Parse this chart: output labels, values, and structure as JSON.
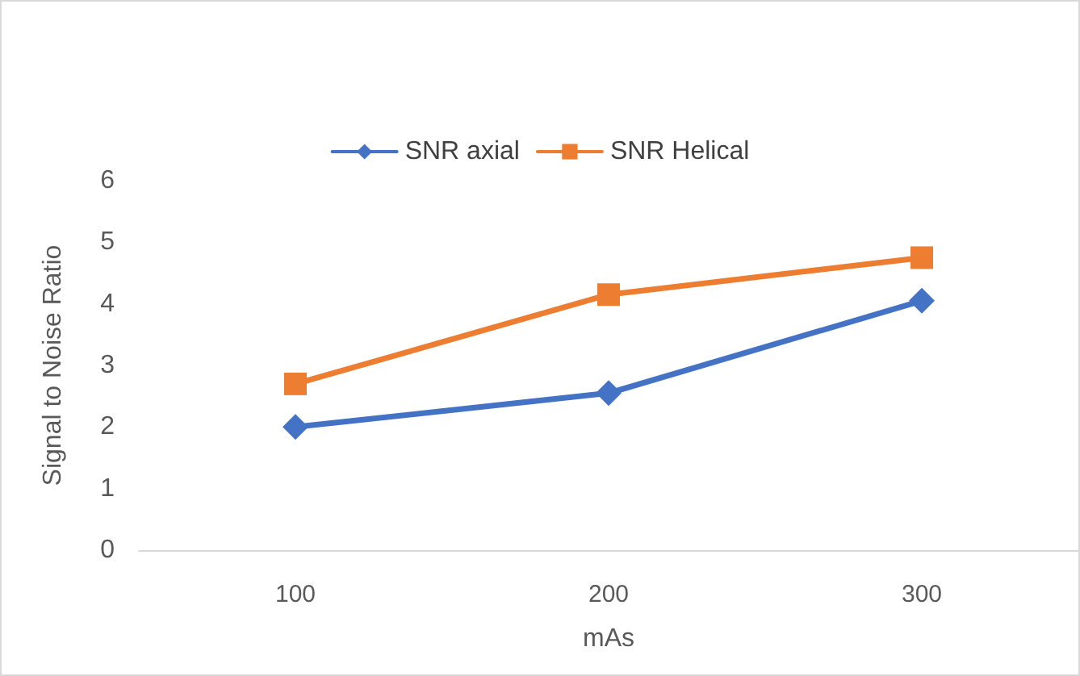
{
  "chart_data": {
    "type": "line",
    "xlabel": "mAs",
    "ylabel": "Signal to Noise Ratio",
    "categories": [
      "100",
      "200",
      "300"
    ],
    "series": [
      {
        "name": "SNR axial",
        "color": "#4472c4",
        "marker": "diamond",
        "values": [
          2.0,
          2.55,
          4.05
        ]
      },
      {
        "name": "SNR Helical",
        "color": "#ed7d31",
        "marker": "square",
        "values": [
          2.7,
          4.15,
          4.75
        ]
      }
    ],
    "ylim": [
      0,
      6
    ],
    "yticks": [
      0,
      1,
      2,
      3,
      4,
      5,
      6
    ],
    "grid": false,
    "legend": "top"
  }
}
